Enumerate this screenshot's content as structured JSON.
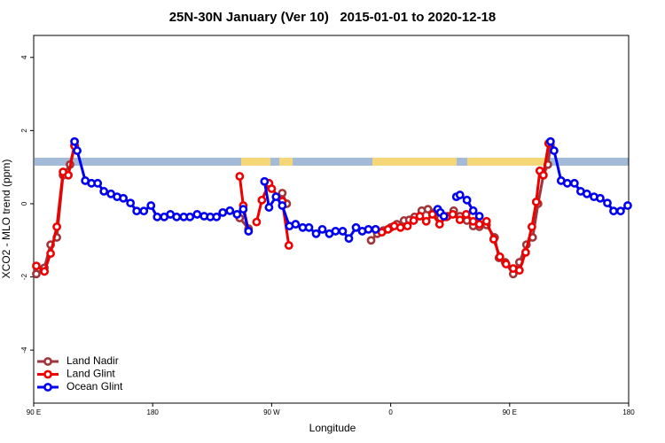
{
  "chart_data": {
    "type": "line",
    "title": "25N-30N January (Ver 10)   2015-01-01 to 2020-12-18",
    "xlabel": "Longitude",
    "ylabel": "XCO2 - MLO trend (ppm)",
    "xlim": [
      90,
      540
    ],
    "ylim": [
      -5.45,
      4.6
    ],
    "xticks": [
      {
        "value": 90,
        "label": "90 E"
      },
      {
        "value": 180,
        "label": "180"
      },
      {
        "value": 270,
        "label": "90 W"
      },
      {
        "value": 360,
        "label": "0"
      },
      {
        "value": 450,
        "label": "90 E"
      },
      {
        "value": 540,
        "label": "180"
      }
    ],
    "yticks": [
      -4,
      -2,
      0,
      2,
      4
    ],
    "legend": "bottom-left",
    "series": [
      {
        "name": "Land Nadir",
        "color": "#a0363a",
        "x": [
          92,
          98.1,
          102.8,
          107.5,
          112.2,
          117.5,
          120.9,
          null,
          245.8,
          252.5,
          null,
          278,
          281.4,
          null,
          345.2,
          349.9,
          354.6,
          360,
          364.7,
          370.1,
          374.1,
          378.1,
          383.5,
          388.2,
          392.9,
          397.6,
          403,
          407.7,
          412.4,
          417.7,
          422.4,
          427.1,
          432.5,
          438.6,
          441.9,
          446.6,
          452.7,
          457.4,
          462.7,
          467.4,
          471.5,
          475.5,
          478.9,
          480.9
        ],
        "values": [
          -1.92,
          -1.75,
          -1.12,
          -0.92,
          0.78,
          1.07,
          1.6,
          null,
          -0.39,
          -0.68,
          null,
          0.29,
          0,
          null,
          -1.0,
          -0.82,
          -0.73,
          -0.65,
          -0.56,
          -0.46,
          -0.44,
          -0.36,
          -0.19,
          -0.15,
          -0.24,
          -0.39,
          -0.34,
          -0.19,
          -0.34,
          -0.46,
          -0.61,
          -0.63,
          -0.58,
          -0.92,
          -1.48,
          -1.6,
          -1.92,
          -1.6,
          -1.12,
          -0.92,
          0,
          0.78,
          1.07,
          1.6
        ]
      },
      {
        "name": "Land Glint",
        "color": "#ee0000",
        "x": [
          92,
          98.1,
          102.8,
          107.5,
          112.2,
          116.2,
          120.9,
          null,
          245.8,
          248.5,
          252.5,
          null,
          258.6,
          262.6,
          268,
          270,
          278,
          283,
          null,
          348.6,
          353.3,
          358,
          362.7,
          367.4,
          372.7,
          377.4,
          382.1,
          386.9,
          391.6,
          397,
          402.3,
          407,
          412.4,
          417.1,
          422.4,
          427.1,
          432.5,
          437.9,
          442.6,
          447.3,
          452.7,
          457.4,
          462.1,
          466.8,
          470.1,
          472.8,
          475.5,
          479.5
        ],
        "values": [
          -1.7,
          -1.85,
          -1.36,
          -0.63,
          0.87,
          0.78,
          1.58,
          null,
          0.75,
          -0.05,
          -0.75,
          null,
          -0.5,
          0.1,
          0.56,
          0.41,
          0.07,
          -1.14,
          null,
          -0.7,
          -0.78,
          -0.7,
          -0.61,
          -0.65,
          -0.61,
          -0.46,
          -0.34,
          -0.48,
          -0.29,
          -0.56,
          -0.36,
          -0.29,
          -0.44,
          -0.29,
          -0.48,
          -0.56,
          -0.48,
          -0.97,
          -1.45,
          -1.65,
          -1.77,
          -1.82,
          -1.33,
          -0.63,
          0.05,
          0.9,
          0.78,
          1.65
        ]
      },
      {
        "name": "Ocean Glint",
        "color": "#0000ee",
        "x": [
          120.9,
          122.9,
          129,
          133.7,
          138.4,
          143.1,
          148.4,
          153.1,
          157.8,
          163.2,
          167.9,
          173.3,
          178.7,
          183.4,
          188.7,
          193.4,
          198.1,
          203.5,
          208.2,
          213.6,
          218.9,
          223.6,
          228.3,
          233,
          238.4,
          243.8,
          248.5,
          252.5,
          null,
          264.6,
          268,
          273.3,
          278,
          283.4,
          288.1,
          293.5,
          298.2,
          303.6,
          308.3,
          313.6,
          318.3,
          323.7,
          328.4,
          333.8,
          338.5,
          343.2,
          348.6,
          null,
          395.6,
          397.6,
          400.3,
          null,
          409.7,
          412.4,
          417.7,
          422.4,
          427.1,
          null,
          480.9,
          483.6,
          488.9,
          493.6,
          499,
          503.7,
          508.4,
          513.8,
          518.5,
          523.9,
          528.6,
          533.9,
          539.3
        ],
        "values": [
          1.7,
          1.45,
          0.63,
          0.56,
          0.56,
          0.34,
          0.27,
          0.19,
          0.15,
          0.02,
          -0.2,
          -0.2,
          -0.05,
          -0.36,
          -0.36,
          -0.29,
          -0.36,
          -0.36,
          -0.36,
          -0.29,
          -0.34,
          -0.36,
          -0.36,
          -0.24,
          -0.19,
          -0.29,
          -0.15,
          -0.75,
          null,
          0.61,
          -0.1,
          0.19,
          -0.05,
          -0.61,
          -0.56,
          -0.65,
          -0.65,
          -0.82,
          -0.7,
          -0.82,
          -0.75,
          -0.75,
          -0.95,
          -0.65,
          -0.75,
          -0.7,
          -0.7,
          null,
          -0.15,
          -0.24,
          -0.34,
          null,
          0.19,
          0.24,
          0.1,
          -0.19,
          -0.34,
          null,
          1.7,
          1.45,
          0.63,
          0.56,
          0.56,
          0.34,
          0.27,
          0.19,
          0.15,
          0.02,
          -0.2,
          -0.2,
          -0.05
        ]
      }
    ]
  }
}
